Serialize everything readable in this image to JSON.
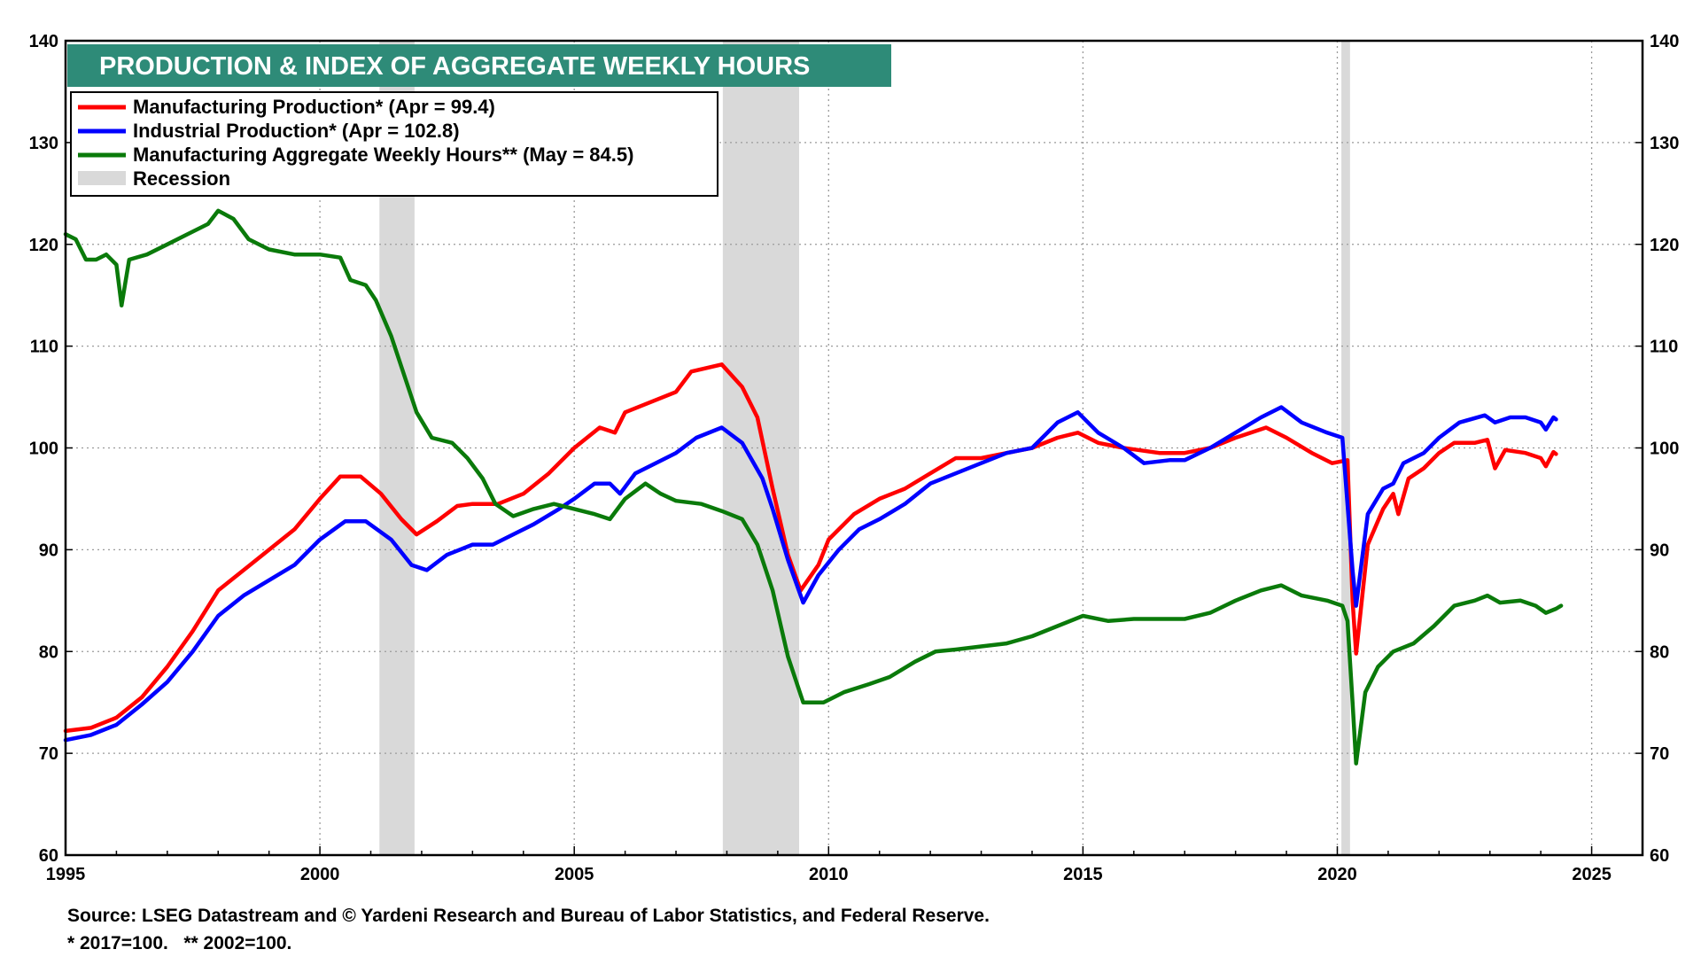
{
  "chart_data": {
    "type": "line",
    "title": "PRODUCTION & INDEX OF AGGREGATE WEEKLY HOURS",
    "x_range": [
      1995,
      2026
    ],
    "x_ticks": [
      1995,
      2000,
      2005,
      2010,
      2015,
      2020,
      2025
    ],
    "ylim": [
      60,
      140
    ],
    "y_ticks": [
      60,
      70,
      80,
      90,
      100,
      110,
      120,
      130,
      140
    ],
    "grid": true,
    "legend_position": "top-left",
    "legend": [
      {
        "label": "Manufacturing Production* (Apr = 99.4)",
        "color": "#ff0000",
        "kind": "line"
      },
      {
        "label": "Industrial Production* (Apr = 102.8)",
        "color": "#0000ff",
        "kind": "line"
      },
      {
        "label": "Manufacturing Aggregate Weekly Hours** (May = 84.5)",
        "color": "#0a7a0a",
        "kind": "line"
      },
      {
        "label": "Recession",
        "color": "#d9d9d9",
        "kind": "box"
      }
    ],
    "recessions": [
      [
        2001.17,
        2001.86
      ],
      [
        2007.92,
        2009.42
      ],
      [
        2020.08,
        2020.25
      ]
    ],
    "series": [
      {
        "name": "Manufacturing Production",
        "color": "#ff0000",
        "points": [
          [
            1995.0,
            72.2
          ],
          [
            1995.5,
            72.5
          ],
          [
            1996.0,
            73.5
          ],
          [
            1996.5,
            75.5
          ],
          [
            1997.0,
            78.5
          ],
          [
            1997.5,
            82.0
          ],
          [
            1998.0,
            86.0
          ],
          [
            1998.5,
            88.0
          ],
          [
            1999.0,
            90.0
          ],
          [
            1999.5,
            92.0
          ],
          [
            2000.0,
            95.0
          ],
          [
            2000.4,
            97.2
          ],
          [
            2000.8,
            97.2
          ],
          [
            2001.2,
            95.5
          ],
          [
            2001.6,
            93.0
          ],
          [
            2001.9,
            91.5
          ],
          [
            2002.3,
            92.8
          ],
          [
            2002.7,
            94.3
          ],
          [
            2003.0,
            94.5
          ],
          [
            2003.5,
            94.5
          ],
          [
            2004.0,
            95.5
          ],
          [
            2004.5,
            97.5
          ],
          [
            2005.0,
            100.0
          ],
          [
            2005.5,
            102.0
          ],
          [
            2005.8,
            101.5
          ],
          [
            2006.0,
            103.5
          ],
          [
            2006.5,
            104.5
          ],
          [
            2007.0,
            105.5
          ],
          [
            2007.3,
            107.5
          ],
          [
            2007.9,
            108.2
          ],
          [
            2008.3,
            106.0
          ],
          [
            2008.6,
            103.0
          ],
          [
            2008.9,
            96.0
          ],
          [
            2009.2,
            89.5
          ],
          [
            2009.45,
            86.0
          ],
          [
            2009.8,
            88.5
          ],
          [
            2010.0,
            91.0
          ],
          [
            2010.5,
            93.5
          ],
          [
            2011.0,
            95.0
          ],
          [
            2011.5,
            96.0
          ],
          [
            2012.0,
            97.5
          ],
          [
            2012.5,
            99.0
          ],
          [
            2013.0,
            99.0
          ],
          [
            2013.5,
            99.5
          ],
          [
            2014.0,
            100.0
          ],
          [
            2014.5,
            101.0
          ],
          [
            2014.9,
            101.5
          ],
          [
            2015.3,
            100.5
          ],
          [
            2015.8,
            100.0
          ],
          [
            2016.5,
            99.5
          ],
          [
            2017.0,
            99.5
          ],
          [
            2017.5,
            100.0
          ],
          [
            2018.0,
            101.0
          ],
          [
            2018.6,
            102.0
          ],
          [
            2019.0,
            101.0
          ],
          [
            2019.5,
            99.5
          ],
          [
            2019.9,
            98.5
          ],
          [
            2020.2,
            98.8
          ],
          [
            2020.3,
            85.0
          ],
          [
            2020.37,
            79.8
          ],
          [
            2020.6,
            90.5
          ],
          [
            2020.9,
            94.0
          ],
          [
            2021.1,
            95.5
          ],
          [
            2021.2,
            93.5
          ],
          [
            2021.4,
            97.0
          ],
          [
            2021.7,
            98.0
          ],
          [
            2022.0,
            99.5
          ],
          [
            2022.3,
            100.5
          ],
          [
            2022.7,
            100.5
          ],
          [
            2022.95,
            100.8
          ],
          [
            2023.1,
            98.0
          ],
          [
            2023.3,
            99.8
          ],
          [
            2023.7,
            99.5
          ],
          [
            2024.0,
            99.0
          ],
          [
            2024.1,
            98.2
          ],
          [
            2024.25,
            99.6
          ],
          [
            2024.3,
            99.4
          ]
        ]
      },
      {
        "name": "Industrial Production",
        "color": "#0000ff",
        "points": [
          [
            1995.0,
            71.3
          ],
          [
            1995.5,
            71.8
          ],
          [
            1996.0,
            72.8
          ],
          [
            1996.5,
            74.8
          ],
          [
            1997.0,
            77.0
          ],
          [
            1997.5,
            80.0
          ],
          [
            1998.0,
            83.5
          ],
          [
            1998.5,
            85.5
          ],
          [
            1999.0,
            87.0
          ],
          [
            1999.5,
            88.5
          ],
          [
            2000.0,
            91.0
          ],
          [
            2000.5,
            92.8
          ],
          [
            2000.9,
            92.8
          ],
          [
            2001.4,
            91.0
          ],
          [
            2001.8,
            88.5
          ],
          [
            2002.1,
            88.0
          ],
          [
            2002.5,
            89.5
          ],
          [
            2003.0,
            90.5
          ],
          [
            2003.4,
            90.5
          ],
          [
            2003.8,
            91.5
          ],
          [
            2004.2,
            92.5
          ],
          [
            2004.7,
            94.0
          ],
          [
            2005.0,
            95.0
          ],
          [
            2005.4,
            96.5
          ],
          [
            2005.7,
            96.5
          ],
          [
            2005.9,
            95.5
          ],
          [
            2006.2,
            97.5
          ],
          [
            2006.6,
            98.5
          ],
          [
            2007.0,
            99.5
          ],
          [
            2007.4,
            101.0
          ],
          [
            2007.9,
            102.0
          ],
          [
            2008.3,
            100.5
          ],
          [
            2008.7,
            97.0
          ],
          [
            2008.9,
            94.0
          ],
          [
            2009.2,
            89.0
          ],
          [
            2009.5,
            84.8
          ],
          [
            2009.8,
            87.5
          ],
          [
            2010.2,
            90.0
          ],
          [
            2010.6,
            92.0
          ],
          [
            2011.0,
            93.0
          ],
          [
            2011.5,
            94.5
          ],
          [
            2012.0,
            96.5
          ],
          [
            2012.5,
            97.5
          ],
          [
            2013.0,
            98.5
          ],
          [
            2013.5,
            99.5
          ],
          [
            2014.0,
            100.0
          ],
          [
            2014.5,
            102.5
          ],
          [
            2014.9,
            103.5
          ],
          [
            2015.3,
            101.5
          ],
          [
            2015.8,
            100.0
          ],
          [
            2016.2,
            98.5
          ],
          [
            2016.7,
            98.8
          ],
          [
            2017.0,
            98.8
          ],
          [
            2017.5,
            100.0
          ],
          [
            2018.0,
            101.5
          ],
          [
            2018.5,
            103.0
          ],
          [
            2018.9,
            104.0
          ],
          [
            2019.3,
            102.5
          ],
          [
            2019.8,
            101.5
          ],
          [
            2020.1,
            101.0
          ],
          [
            2020.3,
            88.0
          ],
          [
            2020.37,
            84.5
          ],
          [
            2020.6,
            93.5
          ],
          [
            2020.9,
            96.0
          ],
          [
            2021.1,
            96.5
          ],
          [
            2021.3,
            98.5
          ],
          [
            2021.7,
            99.5
          ],
          [
            2022.0,
            101.0
          ],
          [
            2022.4,
            102.5
          ],
          [
            2022.9,
            103.2
          ],
          [
            2023.1,
            102.5
          ],
          [
            2023.4,
            103.0
          ],
          [
            2023.7,
            103.0
          ],
          [
            2024.0,
            102.5
          ],
          [
            2024.1,
            101.8
          ],
          [
            2024.25,
            103.0
          ],
          [
            2024.3,
            102.8
          ]
        ]
      },
      {
        "name": "Manufacturing Aggregate Weekly Hours",
        "color": "#0a7a0a",
        "points": [
          [
            1995.0,
            121.0
          ],
          [
            1995.2,
            120.5
          ],
          [
            1995.4,
            118.5
          ],
          [
            1995.6,
            118.5
          ],
          [
            1995.8,
            119.0
          ],
          [
            1996.0,
            118.0
          ],
          [
            1996.1,
            114.0
          ],
          [
            1996.25,
            118.5
          ],
          [
            1996.6,
            119.0
          ],
          [
            1997.0,
            120.0
          ],
          [
            1997.4,
            121.0
          ],
          [
            1997.8,
            122.0
          ],
          [
            1998.0,
            123.3
          ],
          [
            1998.3,
            122.5
          ],
          [
            1998.6,
            120.5
          ],
          [
            1999.0,
            119.5
          ],
          [
            1999.5,
            119.0
          ],
          [
            2000.0,
            119.0
          ],
          [
            2000.4,
            118.7
          ],
          [
            2000.6,
            116.5
          ],
          [
            2000.9,
            116.0
          ],
          [
            2001.1,
            114.5
          ],
          [
            2001.4,
            111.0
          ],
          [
            2001.7,
            106.5
          ],
          [
            2001.9,
            103.5
          ],
          [
            2002.2,
            101.0
          ],
          [
            2002.6,
            100.5
          ],
          [
            2002.9,
            99.0
          ],
          [
            2003.2,
            97.0
          ],
          [
            2003.45,
            94.5
          ],
          [
            2003.8,
            93.3
          ],
          [
            2004.2,
            94.0
          ],
          [
            2004.6,
            94.5
          ],
          [
            2005.0,
            94.0
          ],
          [
            2005.4,
            93.5
          ],
          [
            2005.7,
            93.0
          ],
          [
            2006.0,
            95.0
          ],
          [
            2006.4,
            96.5
          ],
          [
            2006.7,
            95.5
          ],
          [
            2007.0,
            94.8
          ],
          [
            2007.5,
            94.5
          ],
          [
            2007.9,
            93.8
          ],
          [
            2008.3,
            93.0
          ],
          [
            2008.6,
            90.5
          ],
          [
            2008.9,
            86.0
          ],
          [
            2009.2,
            79.5
          ],
          [
            2009.5,
            75.0
          ],
          [
            2009.9,
            75.0
          ],
          [
            2010.3,
            76.0
          ],
          [
            2010.8,
            76.8
          ],
          [
            2011.2,
            77.5
          ],
          [
            2011.7,
            79.0
          ],
          [
            2012.1,
            80.0
          ],
          [
            2012.5,
            80.2
          ],
          [
            2013.0,
            80.5
          ],
          [
            2013.5,
            80.8
          ],
          [
            2014.0,
            81.5
          ],
          [
            2014.5,
            82.5
          ],
          [
            2015.0,
            83.5
          ],
          [
            2015.5,
            83.0
          ],
          [
            2016.0,
            83.2
          ],
          [
            2016.5,
            83.2
          ],
          [
            2017.0,
            83.2
          ],
          [
            2017.5,
            83.8
          ],
          [
            2018.0,
            85.0
          ],
          [
            2018.5,
            86.0
          ],
          [
            2018.9,
            86.5
          ],
          [
            2019.3,
            85.5
          ],
          [
            2019.8,
            85.0
          ],
          [
            2020.1,
            84.5
          ],
          [
            2020.2,
            83.0
          ],
          [
            2020.3,
            75.0
          ],
          [
            2020.37,
            69.0
          ],
          [
            2020.55,
            76.0
          ],
          [
            2020.8,
            78.5
          ],
          [
            2021.1,
            80.0
          ],
          [
            2021.5,
            80.8
          ],
          [
            2021.9,
            82.5
          ],
          [
            2022.3,
            84.5
          ],
          [
            2022.7,
            85.0
          ],
          [
            2022.95,
            85.5
          ],
          [
            2023.2,
            84.8
          ],
          [
            2023.6,
            85.0
          ],
          [
            2023.9,
            84.5
          ],
          [
            2024.1,
            83.8
          ],
          [
            2024.3,
            84.2
          ],
          [
            2024.4,
            84.5
          ]
        ]
      }
    ],
    "footer": {
      "source": "Source: LSEG Datastream and © Yardeni Research and Bureau of Labor Statistics, and Federal Reserve.",
      "note": "* 2017=100.   ** 2002=100."
    }
  }
}
